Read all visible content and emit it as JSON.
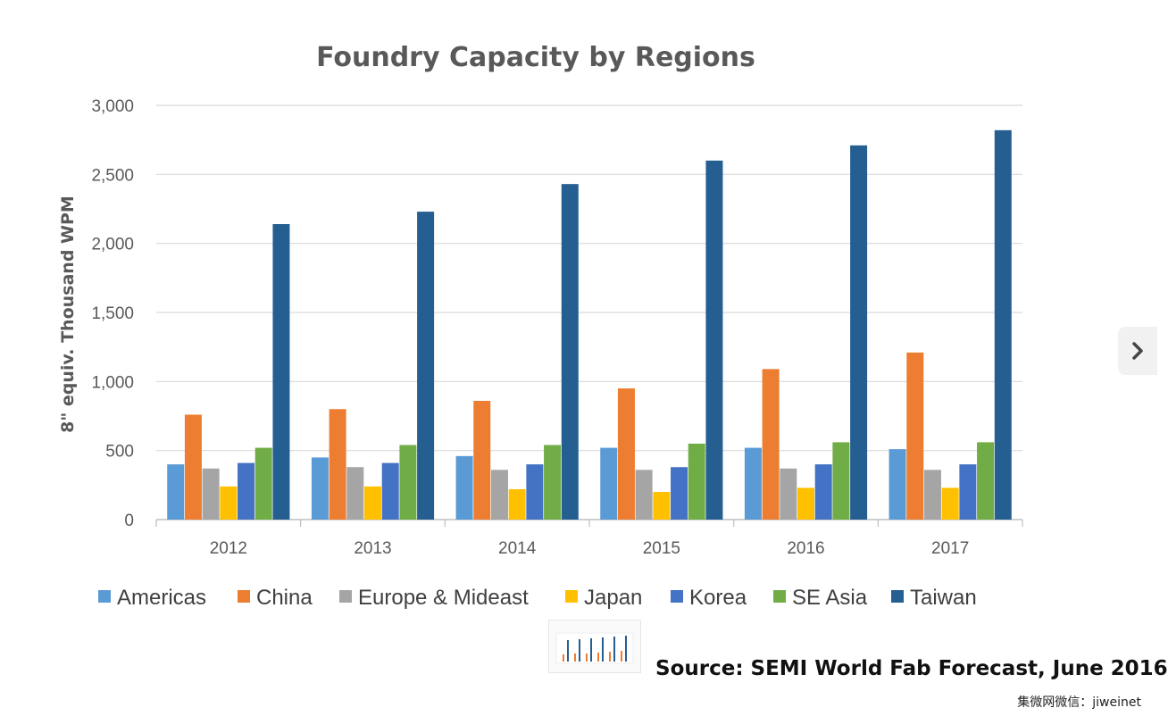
{
  "chart_data": {
    "type": "bar",
    "title": "Foundry Capacity by Regions",
    "ylabel": "8\" equiv. Thousand WPM",
    "xlabel": "",
    "ylim": [
      0,
      3000
    ],
    "yticks": [
      0,
      500,
      1000,
      1500,
      2000,
      2500,
      3000
    ],
    "ytick_labels": [
      "0",
      "500",
      "1,000",
      "1,500",
      "2,000",
      "2,500",
      "3,000"
    ],
    "grid": true,
    "legend_position": "bottom",
    "categories": [
      "2012",
      "2013",
      "2014",
      "2015",
      "2016",
      "2017"
    ],
    "series": [
      {
        "name": "Americas",
        "color": "#5B9BD5",
        "values": [
          400,
          450,
          460,
          520,
          520,
          510
        ]
      },
      {
        "name": "China",
        "color": "#ED7D31",
        "values": [
          760,
          800,
          860,
          950,
          1090,
          1210
        ]
      },
      {
        "name": "Europe & Mideast",
        "color": "#A5A5A5",
        "values": [
          370,
          380,
          360,
          360,
          370,
          360
        ]
      },
      {
        "name": "Japan",
        "color": "#FFC000",
        "values": [
          240,
          240,
          220,
          200,
          230,
          230
        ]
      },
      {
        "name": "Korea",
        "color": "#4472C4",
        "values": [
          410,
          410,
          400,
          380,
          400,
          400
        ]
      },
      {
        "name": "SE Asia",
        "color": "#70AD47",
        "values": [
          520,
          540,
          540,
          550,
          560,
          560
        ]
      },
      {
        "name": "Taiwan",
        "color": "#255E91",
        "values": [
          2140,
          2230,
          2430,
          2600,
          2710,
          2820
        ]
      }
    ]
  },
  "source_note": "Source: SEMI World Fab Forecast, June 2016",
  "watermark": "集微网微信：jiweinet",
  "nav": {
    "next_icon": "chevron-right-icon"
  },
  "colors": {
    "grid": "#d9d9d9",
    "axis": "#bfbfbf",
    "text": "#595959"
  }
}
